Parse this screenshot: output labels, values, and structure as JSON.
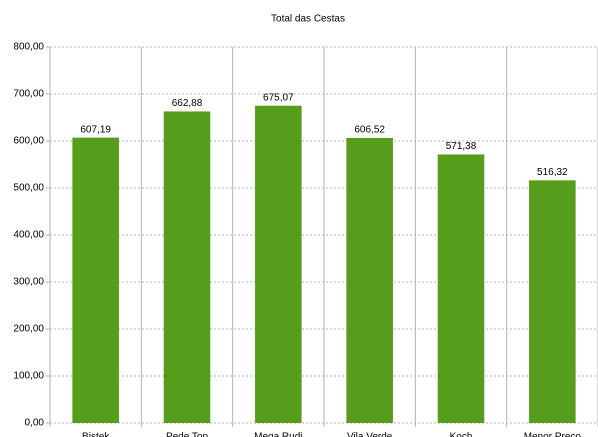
{
  "chart_data": {
    "type": "bar",
    "title": "Total das Cestas",
    "categories": [
      "Bistek",
      "Pede Top",
      "Mega Rudi",
      "Vila Verde",
      "Koch",
      "Menor Preço"
    ],
    "values": [
      607.19,
      662.88,
      675.07,
      606.52,
      571.38,
      516.32
    ],
    "value_labels": [
      "607,19",
      "662,88",
      "675,07",
      "606,52",
      "571,38",
      "516,32"
    ],
    "color": "#579d1c",
    "ylim": [
      0,
      800
    ],
    "yticks": [
      {
        "value": 0,
        "label": "0,00"
      },
      {
        "value": 100,
        "label": "100,00"
      },
      {
        "value": 200,
        "label": "200,00"
      },
      {
        "value": 300,
        "label": "300,00"
      },
      {
        "value": 400,
        "label": "400,00"
      },
      {
        "value": 500,
        "label": "500,00"
      },
      {
        "value": 600,
        "label": "600,00"
      },
      {
        "value": 700,
        "label": "700,00"
      },
      {
        "value": 800,
        "label": "800,00"
      }
    ],
    "grid": true
  }
}
